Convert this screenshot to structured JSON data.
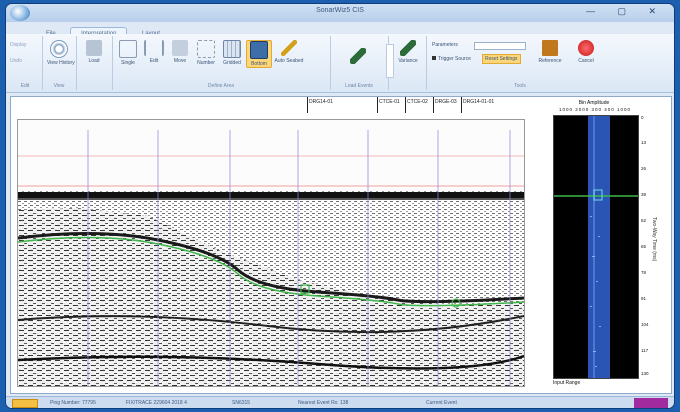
{
  "window": {
    "title": "SonarWiz5 CIS",
    "controls": "— ▢ ✕"
  },
  "tabs": [
    "File",
    "Interpretation",
    "Layout"
  ],
  "ribbon": {
    "groups": {
      "edit": {
        "label": "Edit",
        "buttons": [
          "Display",
          "Undo"
        ]
      },
      "view": {
        "label": "View",
        "buttons": [
          "View History"
        ]
      },
      "load": {
        "label": "",
        "buttons": [
          "Load"
        ]
      },
      "define": {
        "label": "Define Area",
        "buttons": [
          "Single",
          "Edit",
          "Move",
          "Number",
          "Gridded",
          "Bottom",
          "Auto Seabed"
        ]
      },
      "load2": {
        "label": "Load Events",
        "buttons": [
          ""
        ]
      },
      "extra": {
        "label": "",
        "buttons": [
          "Variance"
        ]
      },
      "tool": {
        "label": "Tools",
        "buttons": [
          "Parameters",
          "Trigger Source",
          "Reset Settings",
          "Reference",
          "Cancel"
        ]
      }
    }
  },
  "header": {
    "labels": [
      "DRG14-01",
      "CTCE-01",
      "CTCE-02",
      "DRGE-03",
      "DRG14-01-01"
    ]
  },
  "trace": {
    "title": "Bin Amplitude",
    "axis": "1000  2000  300  400  1000",
    "footer": "Input Range",
    "depth_ticks": [
      "0",
      "13",
      "26",
      "39",
      "52",
      "65",
      "78",
      "91",
      "104",
      "117",
      "130"
    ],
    "vertical_label": "Two-Way Time (ms)"
  },
  "status": {
    "items": [
      "Ping Number: 77795",
      "FIX/TRACE 229604 2018 4",
      "SN6315",
      "Nearest Event Rx: 138",
      "Current Event"
    ]
  },
  "colors": {
    "accent": "#f3c044",
    "pick_line": "#3fb84a",
    "frame": "#1b5fae"
  }
}
